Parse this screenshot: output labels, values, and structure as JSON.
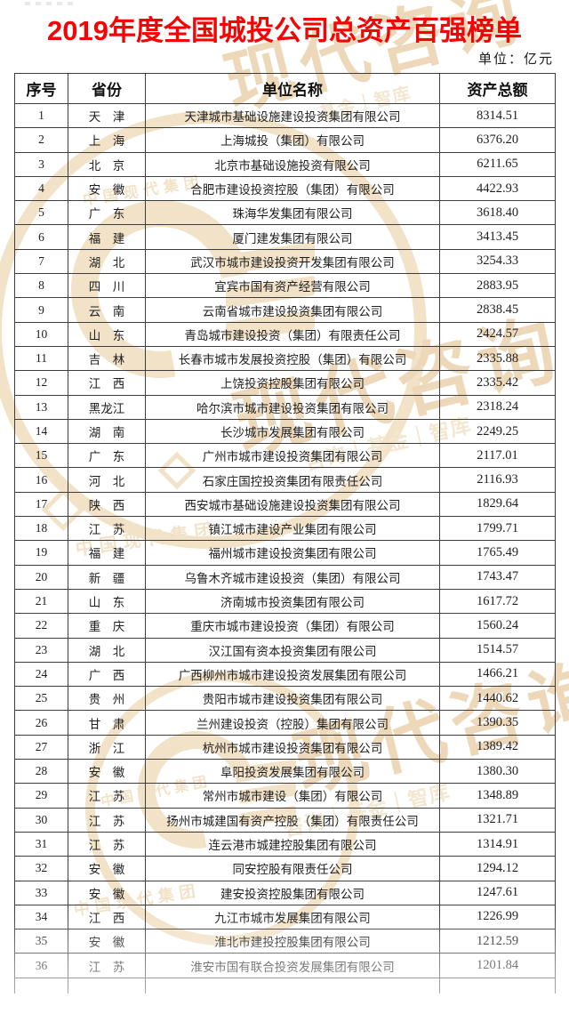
{
  "page": {
    "title": "2019年度全国城投公司总资产百强榜单",
    "title_color": "#f30505",
    "unit_note": "单位：亿元",
    "watermark": {
      "color": "#e6c690",
      "brand_script": "现代咨询",
      "tagline": "咨询｜基金｜智库",
      "tagline_short": "基金｜智库",
      "seal_text": "中国现代集团"
    }
  },
  "table": {
    "columns": [
      "序号",
      "省份",
      "单位名称",
      "资产总额"
    ],
    "rows": [
      {
        "rank": "1",
        "province": "天　津",
        "company": "天津城市基础设施建设投资集团有限公司",
        "assets": "8314.51"
      },
      {
        "rank": "2",
        "province": "上　海",
        "company": "上海城投（集团）有限公司",
        "assets": "6376.20"
      },
      {
        "rank": "3",
        "province": "北　京",
        "company": "北京市基础设施投资有限公司",
        "assets": "6211.65"
      },
      {
        "rank": "4",
        "province": "安　徽",
        "company": "合肥市建设投资控股（集团）有限公司",
        "assets": "4422.93"
      },
      {
        "rank": "5",
        "province": "广　东",
        "company": "珠海华发集团有限公司",
        "assets": "3618.40"
      },
      {
        "rank": "6",
        "province": "福　建",
        "company": "厦门建发集团有限公司",
        "assets": "3413.45"
      },
      {
        "rank": "7",
        "province": "湖　北",
        "company": "武汉市城市建设投资开发集团有限公司",
        "assets": "3254.33"
      },
      {
        "rank": "8",
        "province": "四　川",
        "company": "宜宾市国有资产经营有限公司",
        "assets": "2883.95"
      },
      {
        "rank": "9",
        "province": "云　南",
        "company": "云南省城市建设投资集团有限公司",
        "assets": "2838.45"
      },
      {
        "rank": "10",
        "province": "山　东",
        "company": "青岛城市建设投资（集团）有限责任公司",
        "assets": "2424.57"
      },
      {
        "rank": "11",
        "province": "吉　林",
        "company": "长春市城市发展投资控股（集团）有限公司",
        "assets": "2335.88"
      },
      {
        "rank": "12",
        "province": "江　西",
        "company": "上饶投资控股集团有限公司",
        "assets": "2335.42"
      },
      {
        "rank": "13",
        "province": "黑龙江",
        "company": "哈尔滨市城市建设投资集团有限公司",
        "assets": "2318.24"
      },
      {
        "rank": "14",
        "province": "湖　南",
        "company": "长沙城市发展集团有限公司",
        "assets": "2249.25"
      },
      {
        "rank": "15",
        "province": "广　东",
        "company": "广州市城市建设投资集团有限公司",
        "assets": "2117.01"
      },
      {
        "rank": "16",
        "province": "河　北",
        "company": "石家庄国控投资集团有限责任公司",
        "assets": "2116.93"
      },
      {
        "rank": "17",
        "province": "陕　西",
        "company": "西安城市基础设施建设投资集团有限公司",
        "assets": "1829.64"
      },
      {
        "rank": "18",
        "province": "江　苏",
        "company": "镇江城市建设产业集团有限公司",
        "assets": "1799.71"
      },
      {
        "rank": "19",
        "province": "福　建",
        "company": "福州城市建设投资集团有限公司",
        "assets": "1765.49"
      },
      {
        "rank": "20",
        "province": "新　疆",
        "company": "乌鲁木齐城市建设投资（集团）有限公司",
        "assets": "1743.47"
      },
      {
        "rank": "21",
        "province": "山　东",
        "company": "济南城市投资集团有限公司",
        "assets": "1617.72"
      },
      {
        "rank": "22",
        "province": "重　庆",
        "company": "重庆市城市建设投资（集团）有限公司",
        "assets": "1560.24"
      },
      {
        "rank": "23",
        "province": "湖　北",
        "company": "汉江国有资本投资集团有限公司",
        "assets": "1514.57"
      },
      {
        "rank": "24",
        "province": "广　西",
        "company": "广西柳州市城市建设投资发展集团有限公司",
        "assets": "1466.21"
      },
      {
        "rank": "25",
        "province": "贵　州",
        "company": "贵阳市城市建设投资集团有限公司",
        "assets": "1440.62"
      },
      {
        "rank": "26",
        "province": "甘　肃",
        "company": "兰州建设投资（控股）集团有限公司",
        "assets": "1390.35"
      },
      {
        "rank": "27",
        "province": "浙　江",
        "company": "杭州市城市建设投资集团有限公司",
        "assets": "1389.42"
      },
      {
        "rank": "28",
        "province": "安　徽",
        "company": "阜阳投资发展集团有限公司",
        "assets": "1380.30"
      },
      {
        "rank": "29",
        "province": "江　苏",
        "company": "常州市城市建设（集团）有限公司",
        "assets": "1348.89"
      },
      {
        "rank": "30",
        "province": "江　苏",
        "company": "扬州市城建国有资产控股（集团）有限责任公司",
        "assets": "1321.71"
      },
      {
        "rank": "31",
        "province": "江　苏",
        "company": "连云港市城建控股集团有限公司",
        "assets": "1314.91"
      },
      {
        "rank": "32",
        "province": "安　徽",
        "company": "同安控股有限责任公司",
        "assets": "1294.12"
      },
      {
        "rank": "33",
        "province": "安　徽",
        "company": "建安投资控股集团有限公司",
        "assets": "1247.61"
      },
      {
        "rank": "34",
        "province": "江　西",
        "company": "九江市城市发展集团有限公司",
        "assets": "1226.99"
      },
      {
        "rank": "35",
        "province": "安　徽",
        "company": "淮北市建投控股集团有限公司",
        "assets": "1212.59"
      },
      {
        "rank": "36",
        "province": "江　苏",
        "company": "淮安市国有联合投资发展集团有限公司",
        "assets": "1201.84"
      }
    ]
  }
}
